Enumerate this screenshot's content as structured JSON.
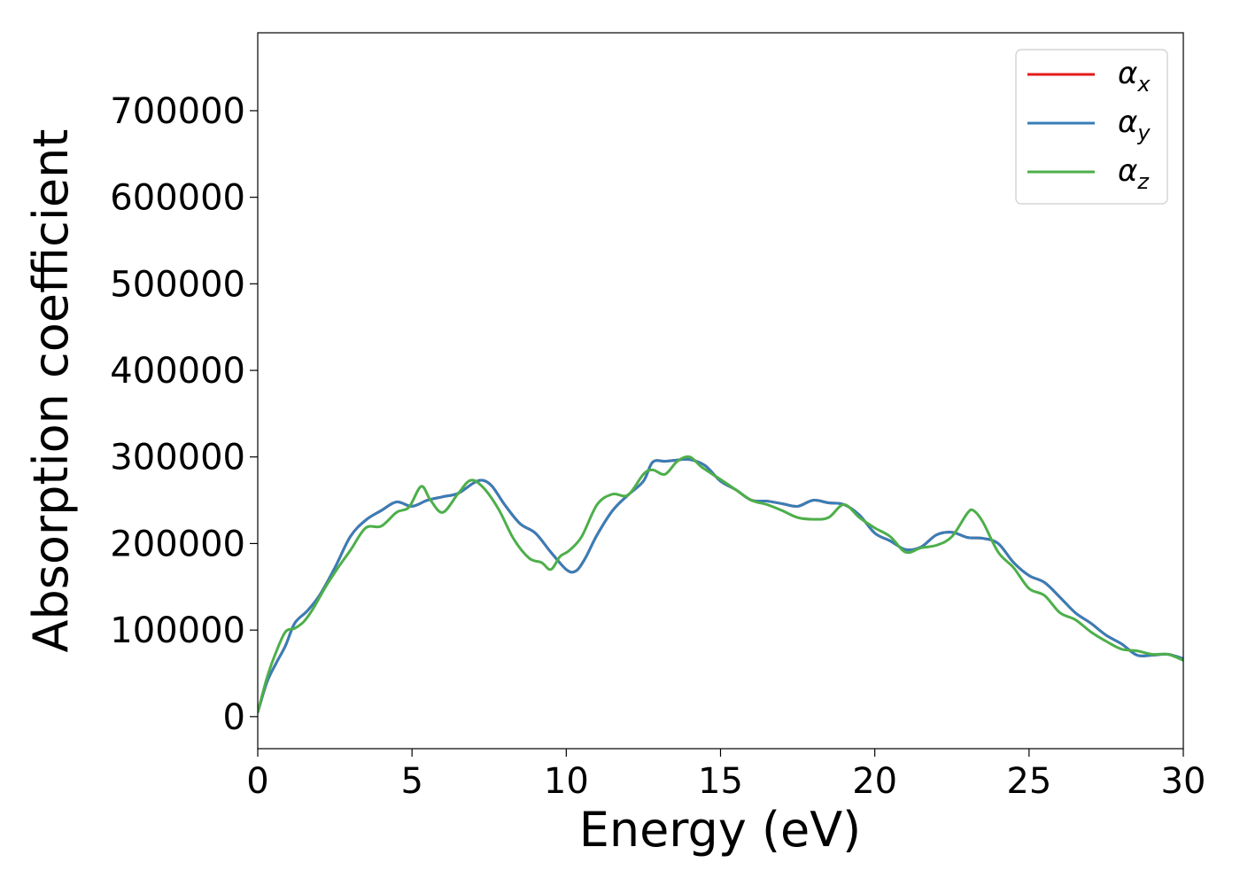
{
  "chart_data": {
    "type": "line",
    "title": "",
    "xlabel": "Energy (eV)",
    "ylabel": "Absorption coefficient",
    "xlim": [
      0,
      30
    ],
    "ylim": [
      -37000,
      790000
    ],
    "xticks": [
      0,
      5,
      10,
      15,
      20,
      25,
      30
    ],
    "yticks": [
      0,
      100000,
      200000,
      300000,
      400000,
      500000,
      600000,
      700000
    ],
    "grid": false,
    "legend_position": "top-right",
    "series": [
      {
        "name": "α_x",
        "label_main": "α",
        "label_sub": "x",
        "color": "#e41a1c",
        "x": [
          0,
          0.3,
          0.6,
          0.9,
          1.2,
          1.6,
          2.0,
          2.5,
          3.0,
          3.5,
          4.0,
          4.5,
          5.0,
          5.5,
          6.0,
          6.5,
          7.0,
          7.3,
          7.6,
          8.0,
          8.5,
          9.0,
          9.5,
          10.0,
          10.3,
          10.6,
          11.0,
          11.5,
          12.0,
          12.5,
          12.8,
          13.2,
          13.5,
          14.0,
          14.5,
          15.0,
          15.5,
          16.0,
          16.5,
          17.0,
          17.5,
          18.0,
          18.5,
          19.0,
          19.5,
          20.0,
          20.5,
          21.0,
          21.5,
          22.0,
          22.5,
          23.0,
          23.5,
          24.0,
          24.5,
          25.0,
          25.5,
          26.0,
          26.5,
          27.0,
          27.5,
          28.0,
          28.5,
          29.0,
          29.5,
          30.0
        ],
        "y": [
          5000,
          40000,
          62000,
          82000,
          108000,
          122000,
          140000,
          172000,
          208000,
          227000,
          238000,
          248000,
          243000,
          250000,
          254000,
          258000,
          270000,
          273000,
          266000,
          245000,
          223000,
          212000,
          190000,
          170000,
          168000,
          182000,
          210000,
          238000,
          256000,
          272000,
          294000,
          295000,
          296000,
          297000,
          290000,
          272000,
          262000,
          250000,
          249000,
          246000,
          243000,
          250000,
          247000,
          245000,
          233000,
          212000,
          203000,
          193000,
          196000,
          210000,
          213000,
          207000,
          206000,
          200000,
          178000,
          163000,
          155000,
          138000,
          120000,
          108000,
          94000,
          84000,
          71000,
          71000,
          72000,
          67000
        ]
      },
      {
        "name": "α_y",
        "label_main": "α",
        "label_sub": "y",
        "color": "#377eb8",
        "x": [
          0,
          0.3,
          0.6,
          0.9,
          1.2,
          1.6,
          2.0,
          2.5,
          3.0,
          3.5,
          4.0,
          4.5,
          5.0,
          5.5,
          6.0,
          6.5,
          7.0,
          7.3,
          7.6,
          8.0,
          8.5,
          9.0,
          9.5,
          10.0,
          10.3,
          10.6,
          11.0,
          11.5,
          12.0,
          12.5,
          12.8,
          13.2,
          13.5,
          14.0,
          14.5,
          15.0,
          15.5,
          16.0,
          16.5,
          17.0,
          17.5,
          18.0,
          18.5,
          19.0,
          19.5,
          20.0,
          20.5,
          21.0,
          21.5,
          22.0,
          22.5,
          23.0,
          23.5,
          24.0,
          24.5,
          25.0,
          25.5,
          26.0,
          26.5,
          27.0,
          27.5,
          28.0,
          28.5,
          29.0,
          29.5,
          30.0
        ],
        "y": [
          5000,
          40000,
          62000,
          82000,
          108000,
          122000,
          140000,
          172000,
          208000,
          227000,
          238000,
          248000,
          243000,
          250000,
          254000,
          258000,
          270000,
          273000,
          266000,
          245000,
          223000,
          212000,
          190000,
          170000,
          168000,
          182000,
          210000,
          238000,
          256000,
          272000,
          294000,
          295000,
          296000,
          297000,
          290000,
          272000,
          262000,
          250000,
          249000,
          246000,
          243000,
          250000,
          247000,
          245000,
          233000,
          212000,
          203000,
          193000,
          196000,
          210000,
          213000,
          207000,
          206000,
          200000,
          178000,
          163000,
          155000,
          138000,
          120000,
          108000,
          94000,
          84000,
          71000,
          71000,
          72000,
          67000
        ]
      },
      {
        "name": "α_z",
        "label_main": "α",
        "label_sub": "z",
        "color": "#4daf4a",
        "x": [
          0,
          0.3,
          0.6,
          0.9,
          1.2,
          1.5,
          1.8,
          2.2,
          2.6,
          3.0,
          3.5,
          4.0,
          4.5,
          4.9,
          5.3,
          5.6,
          6.0,
          6.5,
          6.9,
          7.3,
          7.8,
          8.3,
          8.8,
          9.2,
          9.5,
          9.8,
          10.1,
          10.5,
          11.0,
          11.5,
          12.0,
          12.5,
          12.8,
          13.2,
          13.6,
          14.0,
          14.4,
          15.0,
          15.5,
          16.0,
          16.5,
          17.0,
          17.5,
          18.0,
          18.5,
          19.0,
          19.5,
          20.0,
          20.5,
          21.0,
          21.5,
          22.0,
          22.5,
          23.0,
          23.2,
          23.5,
          24.0,
          24.5,
          25.0,
          25.5,
          26.0,
          26.5,
          27.0,
          27.5,
          28.0,
          28.5,
          29.0,
          29.5,
          30.0
        ],
        "y": [
          5000,
          45000,
          75000,
          98000,
          102000,
          110000,
          125000,
          150000,
          172000,
          192000,
          218000,
          220000,
          236000,
          242000,
          266000,
          250000,
          236000,
          258000,
          273000,
          265000,
          240000,
          205000,
          183000,
          178000,
          170000,
          185000,
          192000,
          208000,
          245000,
          257000,
          256000,
          280000,
          285000,
          280000,
          295000,
          300000,
          288000,
          274000,
          262000,
          250000,
          245000,
          238000,
          230000,
          228000,
          230000,
          245000,
          230000,
          218000,
          208000,
          190000,
          195000,
          198000,
          208000,
          235000,
          238000,
          225000,
          190000,
          172000,
          148000,
          140000,
          120000,
          112000,
          98000,
          87000,
          78000,
          76000,
          72000,
          72000,
          65000
        ]
      }
    ]
  }
}
